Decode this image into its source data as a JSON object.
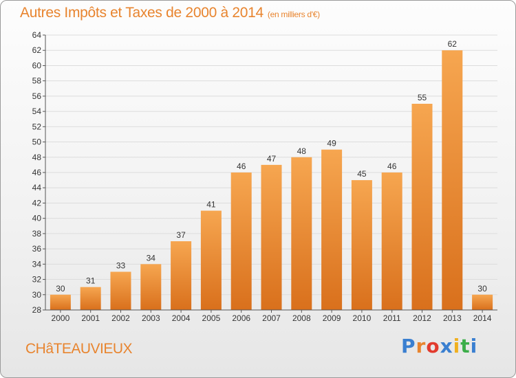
{
  "header": {
    "title": "Autres Impôts et Taxes de 2000 à 2014",
    "subtitle": "(en milliers d'€)"
  },
  "footer": {
    "commune": "CHâTEAUVIEUX",
    "brand": "Proxiti",
    "brand_colors": [
      "#3a7fd0",
      "#e8842e",
      "#e23b2e",
      "#3a7fd0",
      "#f0b020",
      "#3cae4a",
      "#3a7fd0"
    ]
  },
  "colors": {
    "bar_light": "#f6a650",
    "bar_dark": "#d9701c",
    "text": "#333333",
    "grid": "#dcdcdc"
  },
  "chart_data": {
    "type": "bar",
    "categories": [
      "2000",
      "2001",
      "2002",
      "2003",
      "2004",
      "2005",
      "2006",
      "2007",
      "2008",
      "2009",
      "2010",
      "2011",
      "2012",
      "2013",
      "2014"
    ],
    "values": [
      30,
      31,
      33,
      34,
      37,
      41,
      46,
      47,
      48,
      49,
      45,
      46,
      55,
      62,
      30
    ],
    "title": "Autres Impôts et Taxes de 2000 à 2014",
    "xlabel": "",
    "ylabel": "",
    "ylim": [
      28,
      64
    ],
    "yticks": [
      28,
      30,
      32,
      34,
      36,
      38,
      40,
      42,
      44,
      46,
      48,
      50,
      52,
      54,
      56,
      58,
      60,
      62,
      64
    ],
    "grid": true,
    "data_labels": true
  }
}
